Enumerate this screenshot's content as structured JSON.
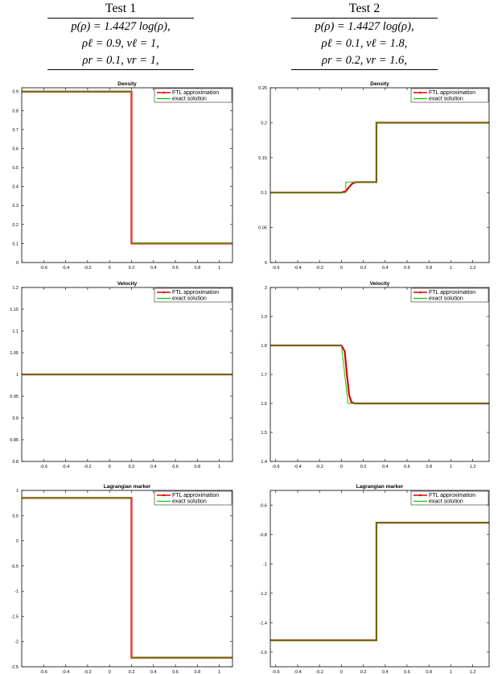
{
  "headers": [
    {
      "title": "Test 1",
      "lines": [
        "p(ρ) = 1.4427 log(ρ),",
        "ρℓ = 0.9,  vℓ = 1,",
        "ρr = 0.1,  vr = 1,"
      ]
    },
    {
      "title": "Test 2",
      "lines": [
        "p(ρ) = 1.4427 log(ρ),",
        "ρℓ = 0.1,  vℓ = 1.8,",
        "ρr = 0.2,  vr = 1.6,"
      ]
    }
  ],
  "legend": {
    "approx_label": "FTL approximation",
    "exact_label": "exact solution",
    "approx_color": "#e00000",
    "exact_color": "#00cc00"
  },
  "chart_data": [
    {
      "type": "line",
      "title": "Density",
      "xlim": [
        -0.8,
        1.12
      ],
      "ylim": [
        0,
        0.92
      ],
      "xticks": [
        -0.6,
        -0.4,
        -0.2,
        0,
        0.2,
        0.4,
        0.6,
        0.8,
        1
      ],
      "yticks": [
        0,
        0.1,
        0.2,
        0.3,
        0.4,
        0.5,
        0.6,
        0.7,
        0.8,
        0.9
      ],
      "series": [
        {
          "name": "FTL approximation",
          "x": [
            -0.8,
            0.2,
            0.2,
            1.12
          ],
          "y": [
            0.9,
            0.9,
            0.1,
            0.1
          ]
        },
        {
          "name": "exact solution",
          "x": [
            -0.8,
            0.2,
            0.2,
            1.12
          ],
          "y": [
            0.9,
            0.9,
            0.1,
            0.1
          ]
        }
      ]
    },
    {
      "type": "line",
      "title": "Density",
      "xlim": [
        -0.65,
        1.35
      ],
      "ylim": [
        0,
        0.25
      ],
      "xticks": [
        -0.6,
        -0.4,
        -0.2,
        0,
        0.2,
        0.4,
        0.6,
        0.8,
        1,
        1.2
      ],
      "yticks": [
        0,
        0.05,
        0.1,
        0.15,
        0.2,
        0.25
      ],
      "series": [
        {
          "name": "FTL approximation",
          "x": [
            -0.65,
            0.0,
            0.04,
            0.07,
            0.1,
            0.13,
            0.32,
            0.32,
            1.35
          ],
          "y": [
            0.1,
            0.1,
            0.102,
            0.108,
            0.113,
            0.115,
            0.115,
            0.2,
            0.2
          ]
        },
        {
          "name": "exact solution",
          "x": [
            -0.65,
            0.04,
            0.04,
            0.32,
            0.32,
            1.35
          ],
          "y": [
            0.1,
            0.1,
            0.115,
            0.115,
            0.2,
            0.2
          ]
        }
      ]
    },
    {
      "type": "line",
      "title": "Velocity",
      "xlim": [
        -0.8,
        1.12
      ],
      "ylim": [
        0.8,
        1.2
      ],
      "xticks": [
        -0.6,
        -0.4,
        -0.2,
        0,
        0.2,
        0.4,
        0.6,
        0.8,
        1
      ],
      "yticks": [
        0.8,
        0.85,
        0.9,
        0.95,
        1,
        1.05,
        1.1,
        1.15,
        1.2
      ],
      "series": [
        {
          "name": "FTL approximation",
          "x": [
            -0.8,
            1.12
          ],
          "y": [
            1,
            1
          ]
        },
        {
          "name": "exact solution",
          "x": [
            -0.8,
            1.12
          ],
          "y": [
            1,
            1
          ]
        }
      ]
    },
    {
      "type": "line",
      "title": "Velocity",
      "xlim": [
        -0.65,
        1.35
      ],
      "ylim": [
        1.4,
        2
      ],
      "xticks": [
        -0.6,
        -0.4,
        -0.2,
        0,
        0.2,
        0.4,
        0.6,
        0.8,
        1,
        1.2
      ],
      "yticks": [
        1.4,
        1.5,
        1.6,
        1.7,
        1.8,
        1.9,
        2
      ],
      "series": [
        {
          "name": "FTL approximation",
          "x": [
            -0.65,
            0.0,
            0.03,
            0.05,
            0.07,
            0.09,
            0.12,
            1.35
          ],
          "y": [
            1.8,
            1.8,
            1.78,
            1.7,
            1.63,
            1.605,
            1.6,
            1.6
          ]
        },
        {
          "name": "exact solution",
          "x": [
            -0.65,
            0.0,
            0.0,
            0.06,
            0.06,
            1.35
          ],
          "y": [
            1.8,
            1.8,
            1.8,
            1.6,
            1.6,
            1.6
          ]
        }
      ]
    },
    {
      "type": "line",
      "title": "Lagrangian marker",
      "xlim": [
        -0.8,
        1.12
      ],
      "ylim": [
        -2.5,
        1
      ],
      "xticks": [
        -0.6,
        -0.4,
        -0.2,
        0,
        0.2,
        0.4,
        0.6,
        0.8,
        1
      ],
      "yticks": [
        -2.5,
        -2,
        -1.5,
        -1,
        -0.5,
        0,
        0.5,
        1
      ],
      "series": [
        {
          "name": "FTL approximation",
          "x": [
            -0.8,
            0.2,
            0.2,
            1.12
          ],
          "y": [
            0.85,
            0.85,
            -2.32,
            -2.32
          ]
        },
        {
          "name": "exact solution",
          "x": [
            -0.8,
            0.2,
            0.2,
            1.12
          ],
          "y": [
            0.85,
            0.85,
            -2.32,
            -2.32
          ]
        }
      ]
    },
    {
      "type": "line",
      "title": "Lagrangian marker",
      "xlim": [
        -0.65,
        1.35
      ],
      "ylim": [
        -1.7,
        -0.5
      ],
      "xticks": [
        -0.6,
        -0.4,
        -0.2,
        0,
        0.2,
        0.4,
        0.6,
        0.8,
        1,
        1.2
      ],
      "yticks": [
        -1.6,
        -1.4,
        -1.2,
        -1,
        -0.8,
        -0.6
      ],
      "series": [
        {
          "name": "FTL approximation",
          "x": [
            -0.65,
            0.32,
            0.32,
            1.35
          ],
          "y": [
            -1.52,
            -1.52,
            -0.72,
            -0.72
          ]
        },
        {
          "name": "exact solution",
          "x": [
            -0.65,
            0.32,
            0.32,
            1.35
          ],
          "y": [
            -1.52,
            -1.52,
            -0.72,
            -0.72
          ]
        }
      ]
    }
  ]
}
